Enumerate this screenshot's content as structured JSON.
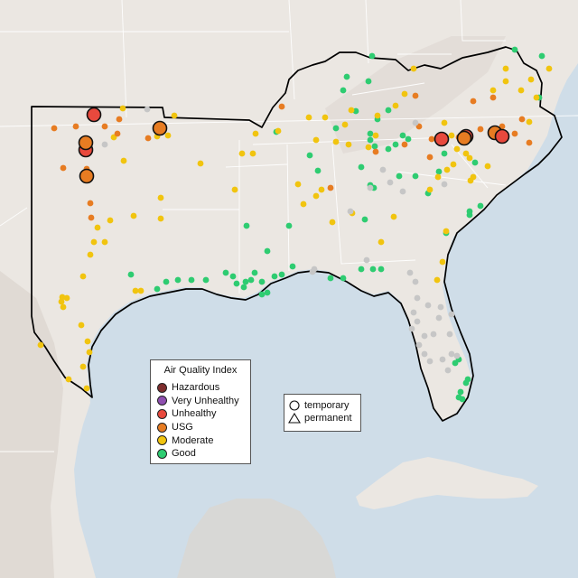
{
  "map": {
    "colors": {
      "ocean": "#cfdde8",
      "land": "#ebe7e2",
      "terrain": "#dcd6cf",
      "state_line": "#ffffff",
      "boundary": "#000000",
      "monitor_outline": "#111111"
    },
    "aqi_legend": {
      "title": "Air Quality Index",
      "categories": [
        {
          "key": "hazardous",
          "label": "Hazardous",
          "color": "#7e2d2d"
        },
        {
          "key": "very_unhealthy",
          "label": "Very Unhealthy",
          "color": "#8f4fb0"
        },
        {
          "key": "unhealthy",
          "label": "Unhealthy",
          "color": "#e8493d"
        },
        {
          "key": "usg",
          "label": "USG",
          "color": "#e77c22"
        },
        {
          "key": "moderate",
          "label": "Moderate",
          "color": "#f1c40f"
        },
        {
          "key": "good",
          "label": "Good",
          "color": "#2ecc71"
        }
      ]
    },
    "type_legend": {
      "temporary": {
        "label": "temporary",
        "icon": "circle-icon"
      },
      "permanent": {
        "label": "permanent",
        "icon": "triangle-icon"
      }
    },
    "no_data_color": "#c6c6c6"
  }
}
